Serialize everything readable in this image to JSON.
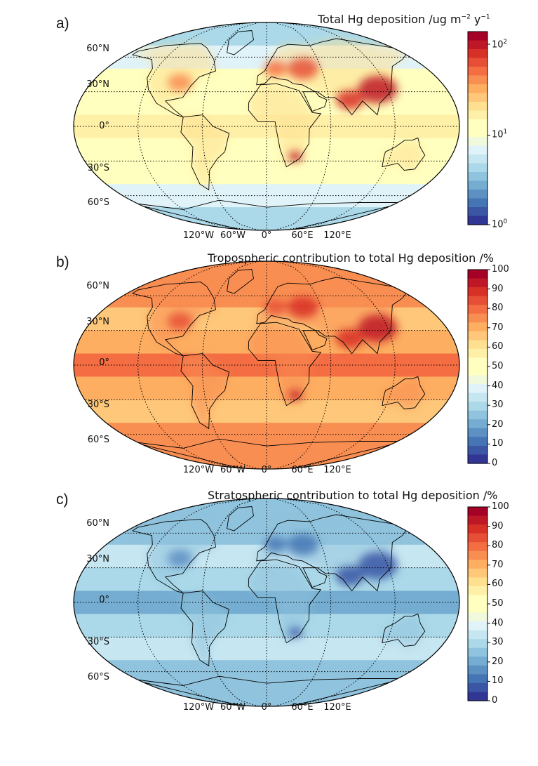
{
  "panels": [
    {
      "letter": "a)",
      "title_prefix": "Total Hg deposition /ug m",
      "title_exp1": "−2",
      "title_mid": " y",
      "title_exp2": "−1",
      "colorbar_scale": "log",
      "colorbar_ticks": [
        {
          "base": "10",
          "exp": "2"
        },
        {
          "base": "10",
          "exp": "1"
        },
        {
          "base": "10",
          "exp": "0"
        }
      ],
      "colorbar_range": [
        1,
        150
      ],
      "field_style": "total"
    },
    {
      "letter": "b)",
      "title": "Tropospheric contribution to total Hg deposition /%",
      "colorbar_scale": "linear",
      "colorbar_ticks": [
        "100",
        "90",
        "80",
        "70",
        "60",
        "50",
        "40",
        "30",
        "20",
        "10",
        "0"
      ],
      "colorbar_range": [
        0,
        100
      ],
      "field_style": "tropospheric"
    },
    {
      "letter": "c)",
      "title": "Stratospheric contribution to total Hg deposition /%",
      "colorbar_scale": "linear",
      "colorbar_ticks": [
        "100",
        "90",
        "80",
        "70",
        "60",
        "50",
        "40",
        "30",
        "20",
        "10",
        "0"
      ],
      "colorbar_range": [
        0,
        100
      ],
      "field_style": "stratospheric"
    }
  ],
  "lat_labels": [
    "60°N",
    "30°N",
    "0°",
    "30°S",
    "60°S"
  ],
  "lon_labels": [
    "120°W",
    "60°W",
    "0°",
    "60°E",
    "120°E"
  ],
  "colormap": "RdYlBu_r"
}
